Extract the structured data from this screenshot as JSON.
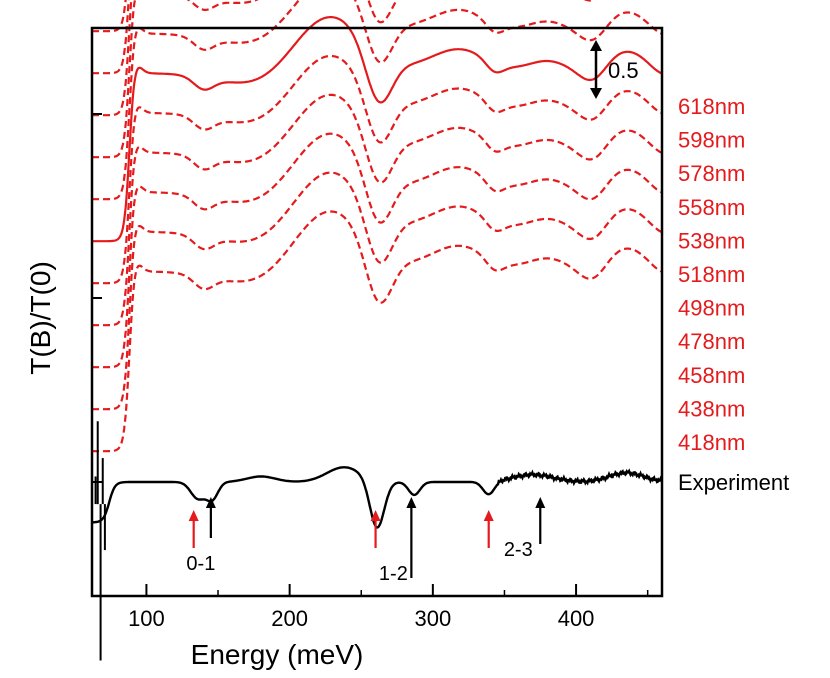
{
  "chart_data": {
    "type": "line",
    "xlabel": "Energy (meV)",
    "ylabel": "T(B)/T(0)",
    "xlim": [
      62,
      460
    ],
    "xticks": [
      100,
      200,
      300,
      400
    ],
    "scale_bar_label": "0.5",
    "colors": {
      "model": "#e41a1c",
      "experiment": "#000000"
    },
    "legend_placement": "right, one label per curve",
    "series": [
      {
        "name": "618nm",
        "style": "dashed",
        "offset": 3.0
      },
      {
        "name": "598nm",
        "style": "dashed",
        "offset": 2.78
      },
      {
        "name": "578nm",
        "style": "dashed",
        "offset": 2.56
      },
      {
        "name": "558nm",
        "style": "dashed",
        "offset": 2.34
      },
      {
        "name": "538nm",
        "style": "dashed",
        "offset": 2.12
      },
      {
        "name": "518nm",
        "style": "solid",
        "offset": 1.9
      },
      {
        "name": "498nm",
        "style": "dashed",
        "offset": 1.68
      },
      {
        "name": "478nm",
        "style": "dashed",
        "offset": 1.46
      },
      {
        "name": "458nm",
        "style": "dashed",
        "offset": 1.24
      },
      {
        "name": "438nm",
        "style": "dashed",
        "offset": 1.02
      },
      {
        "name": "418nm",
        "style": "dashed",
        "offset": 0.8
      },
      {
        "name": "Experiment",
        "style": "solid",
        "offset": 0.0
      }
    ],
    "transition_arrows": [
      {
        "x": 133,
        "color": "red"
      },
      {
        "x": 145,
        "color": "black",
        "label": "0-1"
      },
      {
        "x": 260,
        "color": "red"
      },
      {
        "x": 285,
        "color": "black",
        "label": "1-2"
      },
      {
        "x": 339,
        "color": "red"
      },
      {
        "x": 375,
        "color": "black",
        "label": "2-3"
      }
    ]
  }
}
